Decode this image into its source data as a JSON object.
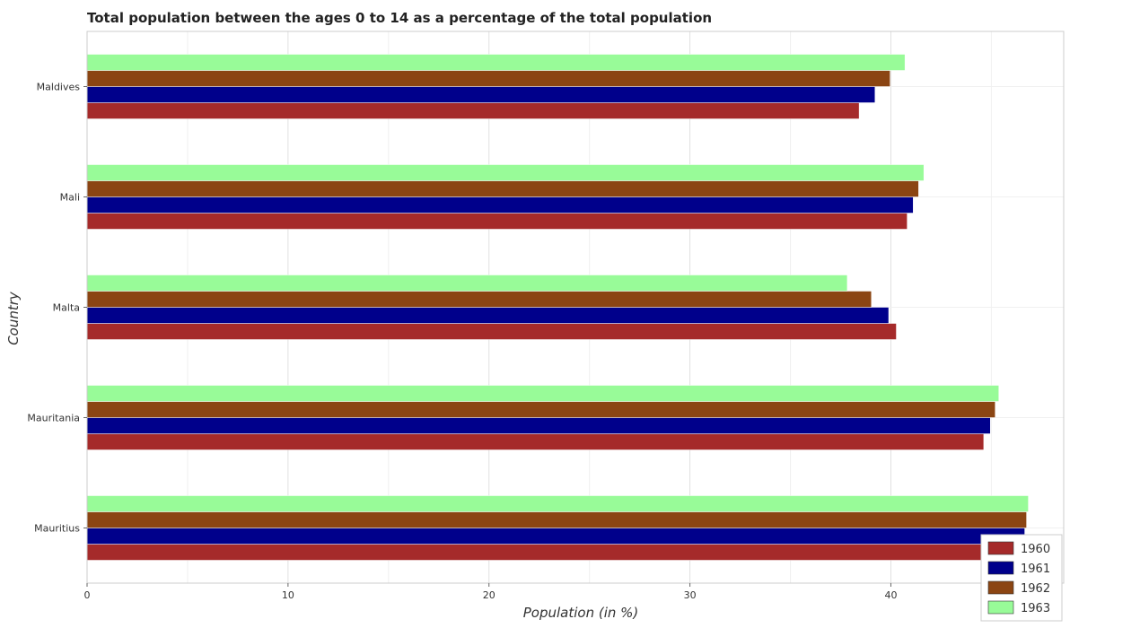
{
  "chart_data": {
    "type": "bar",
    "orientation": "horizontal",
    "title": "Total population between the ages 0 to 14 as a percentage of the total population",
    "xlabel": "Population (in %)",
    "ylabel": "Country",
    "categories": [
      "Maldives",
      "Mali",
      "Malta",
      "Mauritania",
      "Mauritius"
    ],
    "series": [
      {
        "name": "1960",
        "color": "#a52a2a",
        "values": [
          38.42,
          40.81,
          40.27,
          44.62,
          46.59
        ]
      },
      {
        "name": "1961",
        "color": "#00008b",
        "values": [
          39.21,
          41.11,
          39.89,
          44.95,
          46.66
        ]
      },
      {
        "name": "1962",
        "color": "#8b4513",
        "values": [
          39.96,
          41.38,
          39.03,
          45.19,
          46.75
        ]
      },
      {
        "name": "1963",
        "color": "#98fb98",
        "values": [
          40.7,
          41.64,
          37.83,
          45.37,
          46.84
        ]
      }
    ],
    "xlim": [
      0,
      48.6
    ],
    "xticks": [
      0,
      10,
      20,
      30,
      40
    ],
    "grid": true,
    "legend_position": "bottom-right"
  }
}
